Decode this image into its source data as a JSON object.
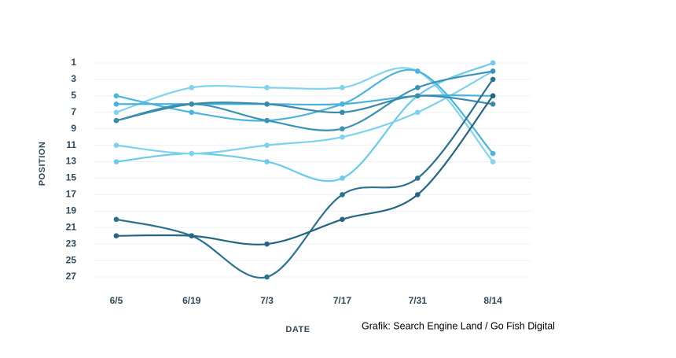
{
  "chart_data": {
    "type": "line",
    "x_label": "DATE",
    "y_label": "POSITION",
    "source": "Grafik: Search Engine Land / Go Fish Digital",
    "categories": [
      "6/5",
      "6/19",
      "7/3",
      "7/17",
      "7/31",
      "8/14"
    ],
    "ylim": [
      28,
      0
    ],
    "yticks": [
      1,
      3,
      5,
      7,
      9,
      11,
      13,
      15,
      17,
      19,
      21,
      23,
      25,
      27
    ],
    "grid": true,
    "series": [
      {
        "color": "#82d3ef",
        "values": [
          7,
          4,
          4,
          4,
          2,
          13
        ]
      },
      {
        "color": "#6ccbeb",
        "values": [
          13,
          12,
          13,
          15,
          5,
          1
        ]
      },
      {
        "color": "#7fd2ee",
        "values": [
          11,
          12,
          11,
          10,
          7,
          2
        ]
      },
      {
        "color": "#4cb5dc",
        "values": [
          5,
          7,
          8,
          6,
          2,
          12
        ]
      },
      {
        "color": "#45b3dd",
        "values": [
          6,
          6,
          6,
          6,
          5,
          5
        ]
      },
      {
        "color": "#3a93b5",
        "values": [
          8,
          6,
          8,
          9,
          4,
          2
        ]
      },
      {
        "color": "#3b8aa9",
        "values": [
          8,
          6,
          6,
          7,
          5,
          6
        ]
      },
      {
        "color": "#2b7290",
        "values": [
          20,
          22,
          27,
          17,
          15,
          3
        ]
      },
      {
        "color": "#256680",
        "values": [
          22,
          22,
          23,
          20,
          17,
          5
        ]
      }
    ]
  }
}
